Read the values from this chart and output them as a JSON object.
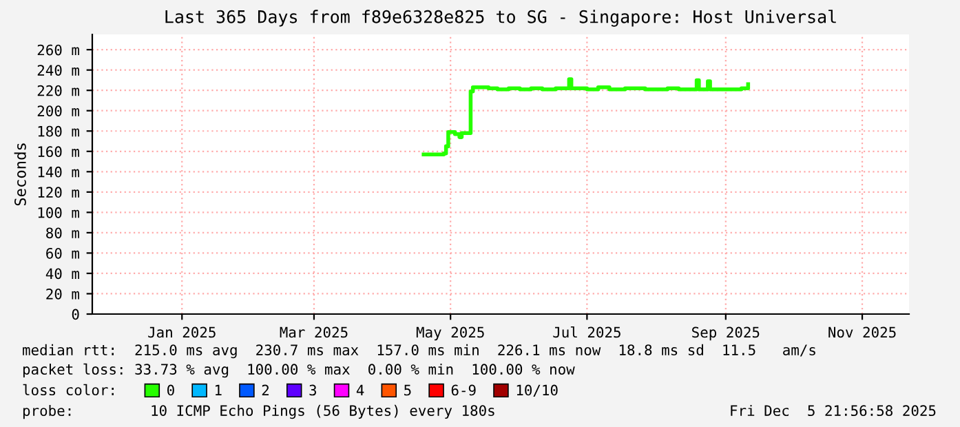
{
  "chart_data": {
    "type": "step",
    "title": "Last 365 Days from f89e6328e825 to SG - Singapore: Host Universal",
    "ylabel": "Seconds",
    "legend_title": "loss color:",
    "x": [
      "2025-05-03",
      "2025-05-12",
      "2025-05-13",
      "2025-05-14",
      "2025-05-17",
      "2025-05-19",
      "2025-05-20",
      "2025-05-23",
      "2025-05-24",
      "2025-05-25",
      "2025-06-01",
      "2025-06-05",
      "2025-06-10",
      "2025-06-15",
      "2025-06-20",
      "2025-06-25",
      "2025-07-01",
      "2025-07-07",
      "2025-07-08",
      "2025-07-15",
      "2025-07-20",
      "2025-07-25",
      "2025-08-01",
      "2025-08-10",
      "2025-08-20",
      "2025-08-25",
      "2025-09-02",
      "2025-09-03",
      "2025-09-07",
      "2025-09-08",
      "2025-09-15",
      "2025-09-22",
      "2025-09-25"
    ],
    "series": [
      {
        "name": "0",
        "color": "#26ff00",
        "values": [
          157,
          158,
          165,
          179,
          177,
          174,
          178,
          178,
          219,
          223,
          222,
          221,
          222,
          221,
          222,
          221,
          222,
          231,
          222,
          221,
          223,
          221,
          222,
          221,
          222,
          221,
          230,
          221,
          229,
          221,
          221,
          222,
          226
        ]
      },
      {
        "name": "1",
        "color": "#00b8ff",
        "values": [
          null,
          null,
          null,
          null,
          null,
          null,
          null,
          null,
          null,
          null,
          null,
          null,
          null,
          null,
          null,
          null,
          null,
          null,
          null,
          null,
          null,
          null,
          null,
          null,
          null,
          null,
          null,
          null,
          null,
          null,
          null,
          null,
          null
        ]
      },
      {
        "name": "2",
        "color": "#0059ff",
        "values": [
          null,
          null,
          null,
          null,
          null,
          null,
          null,
          null,
          null,
          null,
          null,
          null,
          null,
          null,
          null,
          null,
          null,
          null,
          null,
          null,
          null,
          null,
          null,
          null,
          null,
          null,
          null,
          null,
          null,
          null,
          null,
          null,
          null
        ]
      },
      {
        "name": "3",
        "color": "#5e00ff",
        "values": [
          null,
          null,
          null,
          null,
          null,
          null,
          null,
          null,
          null,
          null,
          null,
          null,
          null,
          null,
          null,
          null,
          null,
          null,
          null,
          null,
          null,
          null,
          null,
          null,
          null,
          null,
          null,
          null,
          null,
          null,
          null,
          null,
          null
        ]
      },
      {
        "name": "4",
        "color": "#ff00ff",
        "values": [
          null,
          null,
          null,
          null,
          null,
          null,
          null,
          null,
          null,
          null,
          null,
          null,
          null,
          null,
          null,
          null,
          null,
          null,
          null,
          null,
          null,
          null,
          null,
          null,
          null,
          null,
          null,
          null,
          null,
          null,
          null,
          null,
          null
        ]
      },
      {
        "name": "5",
        "color": "#ff5500",
        "values": [
          null,
          null,
          null,
          null,
          null,
          null,
          null,
          null,
          null,
          null,
          null,
          null,
          null,
          null,
          null,
          null,
          null,
          null,
          null,
          null,
          null,
          null,
          null,
          null,
          null,
          null,
          null,
          null,
          null,
          null,
          null,
          null,
          null
        ]
      },
      {
        "name": "6-9",
        "color": "#ff0000",
        "values": [
          null,
          null,
          null,
          null,
          null,
          null,
          null,
          null,
          null,
          null,
          null,
          null,
          null,
          null,
          null,
          null,
          null,
          null,
          null,
          null,
          null,
          null,
          null,
          null,
          null,
          null,
          null,
          null,
          null,
          null,
          null,
          null,
          null
        ]
      },
      {
        "name": "10/10",
        "color": "#a10000",
        "values": [
          null,
          null,
          null,
          null,
          null,
          null,
          null,
          null,
          null,
          null,
          null,
          null,
          null,
          null,
          null,
          null,
          null,
          null,
          null,
          null,
          null,
          null,
          null,
          null,
          null,
          null,
          null,
          null,
          null,
          null,
          null,
          null,
          null
        ]
      }
    ],
    "xlim": [
      "2024-12-05T21:56",
      "2025-12-05T21:56"
    ],
    "xticks": [
      {
        "value": "2025-01-15",
        "label": "Jan 2025"
      },
      {
        "value": "2025-03-15",
        "label": "Mar 2025"
      },
      {
        "value": "2025-05-15",
        "label": "May 2025"
      },
      {
        "value": "2025-07-15",
        "label": "Jul 2025"
      },
      {
        "value": "2025-09-15",
        "label": "Sep 2025"
      },
      {
        "value": "2025-11-15",
        "label": "Nov 2025"
      }
    ],
    "ylim": [
      0,
      275
    ],
    "yticks": [
      0,
      {
        "value": 20,
        "label": "20 m"
      },
      {
        "value": 40,
        "label": "40 m"
      },
      {
        "value": 60,
        "label": "60 m"
      },
      {
        "value": 80,
        "label": "80 m"
      },
      {
        "value": 100,
        "label": "100 m"
      },
      {
        "value": 120,
        "label": "120 m"
      },
      {
        "value": 140,
        "label": "140 m"
      },
      {
        "value": 160,
        "label": "160 m"
      },
      {
        "value": 180,
        "label": "180 m"
      },
      {
        "value": 200,
        "label": "200 m"
      },
      {
        "value": 220,
        "label": "220 m"
      },
      {
        "value": 240,
        "label": "240 m"
      },
      {
        "value": 260,
        "label": "260 m"
      }
    ],
    "grid": true,
    "legend": "bottom",
    "annotations": [
      "median rtt:  215.0 ms avg  230.7 ms max  157.0 ms min  226.1 ms now  18.8 ms sd  11.5   am/s",
      "packet loss: 33.73 % avg  100.00 % max  0.00 % min  100.00 % now",
      "probe:",
      "10 ICMP Echo Pings (56 Bytes) every 180s",
      "Fri Dec  5 21:56:58 2025"
    ]
  }
}
